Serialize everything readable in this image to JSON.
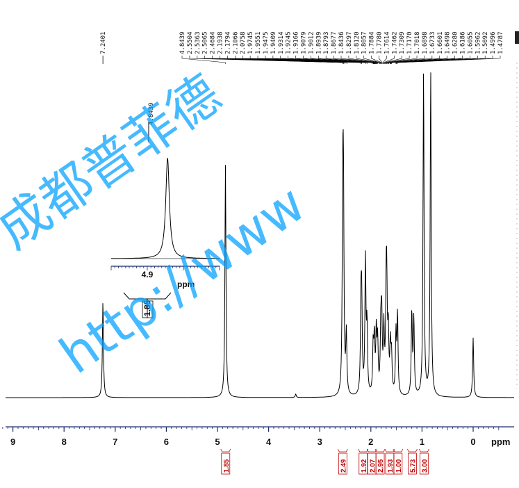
{
  "chart_data": {
    "type": "line",
    "xlabel": "ppm",
    "x_reversed": true,
    "xlim": [
      9.6,
      -0.6
    ],
    "xticks": [
      9,
      8,
      7,
      6,
      5,
      4,
      3,
      2,
      1,
      0
    ],
    "series": [
      {
        "peaks": [
          {
            "x": 7.2401,
            "y": 0.29
          },
          {
            "x": 4.8439,
            "y": 0.7
          },
          {
            "x": 3.47,
            "y": 0.01
          },
          {
            "x": 2.5504,
            "y": 0.52
          },
          {
            "x": 2.5363,
            "y": 0.55
          },
          {
            "x": 2.48,
            "y": 0.18
          },
          {
            "x": 2.1938,
            "y": 0.25
          },
          {
            "x": 2.1794,
            "y": 0.25
          },
          {
            "x": 2.1066,
            "y": 0.4
          },
          {
            "x": 2.0758,
            "y": 0.2
          },
          {
            "x": 1.9551,
            "y": 0.14
          },
          {
            "x": 1.9314,
            "y": 0.16
          },
          {
            "x": 1.8939,
            "y": 0.18
          },
          {
            "x": 1.8677,
            "y": 0.15
          },
          {
            "x": 1.8057,
            "y": 0.18
          },
          {
            "x": 1.7884,
            "y": 0.22
          },
          {
            "x": 1.7462,
            "y": 0.19
          },
          {
            "x": 1.7018,
            "y": 0.25
          },
          {
            "x": 1.6898,
            "y": 0.27
          },
          {
            "x": 1.6601,
            "y": 0.18
          },
          {
            "x": 1.6186,
            "y": 0.14
          },
          {
            "x": 1.5962,
            "y": 0.11
          },
          {
            "x": 1.5092,
            "y": 0.18
          },
          {
            "x": 1.4787,
            "y": 0.24
          },
          {
            "x": 1.2,
            "y": 0.25
          },
          {
            "x": 1.16,
            "y": 0.23
          },
          {
            "x": 0.97,
            "y": 0.98
          },
          {
            "x": 0.83,
            "y": 0.98
          },
          {
            "x": 0.0,
            "y": 0.18
          }
        ]
      }
    ],
    "peak_labels": [
      "7.2401",
      "4.8439",
      "2.5504",
      "2.5363",
      "2.5065",
      "2.4684",
      "2.1938",
      "2.1794",
      "2.1066",
      "2.0758",
      "1.9745",
      "1.9551",
      "1.9475",
      "1.9409",
      "1.9314",
      "1.9245",
      "1.9166",
      "1.9079",
      "1.9012",
      "1.8939",
      "1.8793",
      "1.8677",
      "1.8436",
      "1.8297",
      "1.8120",
      "1.8057",
      "1.7884",
      "1.7780",
      "1.7614",
      "1.7462",
      "1.7309",
      "1.7170",
      "1.7018",
      "1.6898",
      "1.6733",
      "1.6601",
      "1.6498",
      "1.6280",
      "1.6186",
      "1.6055",
      "1.5962",
      "1.5092",
      "1.4996",
      "1.4787"
    ],
    "integrals": [
      {
        "x": 4.84,
        "label": "1.85"
      },
      {
        "x": 2.55,
        "label": "2.49"
      },
      {
        "x": 2.15,
        "label": "1.92"
      },
      {
        "x": 1.98,
        "label": "2.07"
      },
      {
        "x": 1.82,
        "label": "2.95"
      },
      {
        "x": 1.63,
        "label": "1.93"
      },
      {
        "x": 1.47,
        "label": "1.00"
      },
      {
        "x": 1.19,
        "label": "5.73"
      },
      {
        "x": 0.96,
        "label": "3.00"
      }
    ],
    "inset": {
      "xlabel": "ppm",
      "xticks": [
        4.9,
        4.8
      ],
      "xtick_labels": [
        "4.9",
        ""
      ],
      "xlim": [
        5.0,
        4.7
      ],
      "peak_label": "4.8439",
      "integral_label": "1.85"
    }
  },
  "watermark": {
    "line1": "成都普菲德",
    "line2": "http://www"
  },
  "colors": {
    "spectrum": "#000000",
    "integral": "#c00000",
    "watermark": "#00a0ff"
  }
}
